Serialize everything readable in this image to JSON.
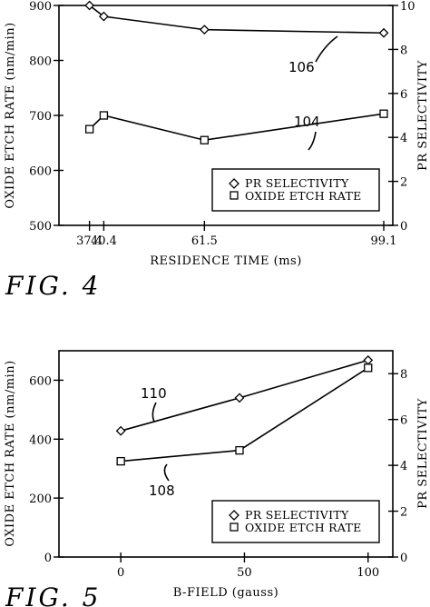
{
  "chart_data": [
    {
      "type": "line",
      "figure_label": "FIG. 4",
      "xlabel": "RESIDENCE TIME (ms)",
      "ylabel_left": "OXIDE ETCH RATE (nm/min)",
      "ylabel_right": "PR SELECTIVITY",
      "x_ticks": [
        37.4,
        40.4,
        61.5,
        99.1
      ],
      "x_tick_labels": [
        "37.4",
        "40.4",
        "61.5",
        "99.1"
      ],
      "xlim": [
        31,
        101
      ],
      "ylim_left": [
        500,
        900
      ],
      "y_ticks_left": [
        "500",
        "600",
        "700",
        "800",
        "900"
      ],
      "ylim_right": [
        0,
        10
      ],
      "y_ticks_right": [
        "0",
        "2",
        "4",
        "6",
        "8",
        "10"
      ],
      "legend": {
        "position": "lower-right",
        "entries": [
          "PR SELECTIVITY",
          "OXIDE ETCH RATE"
        ]
      },
      "series": [
        {
          "name": "PR SELECTIVITY",
          "ref": "106",
          "marker": "diamond",
          "axis": "right",
          "x": [
            37.4,
            40.4,
            61.5,
            99.1
          ],
          "values": [
            10.0,
            9.5,
            8.9,
            8.75
          ]
        },
        {
          "name": "OXIDE ETCH RATE",
          "ref": "104",
          "marker": "square",
          "axis": "left",
          "x": [
            37.4,
            40.4,
            61.5,
            99.1
          ],
          "values": [
            675,
            700,
            655,
            703
          ]
        }
      ]
    },
    {
      "type": "line",
      "figure_label": "FIG. 5",
      "xlabel": "B-FIELD (gauss)",
      "ylabel_left": "OXIDE ETCH RATE (nm/min)",
      "ylabel_right": "PR SELECTIVITY",
      "x_ticks": [
        0,
        50,
        100
      ],
      "x_tick_labels": [
        "0",
        "50",
        "100"
      ],
      "xlim": [
        -25,
        110
      ],
      "ylim_left": [
        0,
        700
      ],
      "y_ticks_left": [
        "0",
        "200",
        "400",
        "600"
      ],
      "ylim_right": [
        0,
        9
      ],
      "y_ticks_right": [
        "0",
        "2",
        "4",
        "6",
        "8"
      ],
      "legend": {
        "position": "lower-right",
        "entries": [
          "PR SELECTIVITY",
          "OXIDE ETCH RATE"
        ]
      },
      "series": [
        {
          "name": "PR SELECTIVITY",
          "ref": "110",
          "marker": "diamond",
          "axis": "left",
          "x": [
            0,
            48,
            100
          ],
          "values": [
            428,
            540,
            668
          ]
        },
        {
          "name": "OXIDE ETCH RATE",
          "ref": "108",
          "marker": "square",
          "axis": "left",
          "x": [
            0,
            48,
            100
          ],
          "values": [
            325,
            362,
            642
          ]
        }
      ]
    }
  ]
}
